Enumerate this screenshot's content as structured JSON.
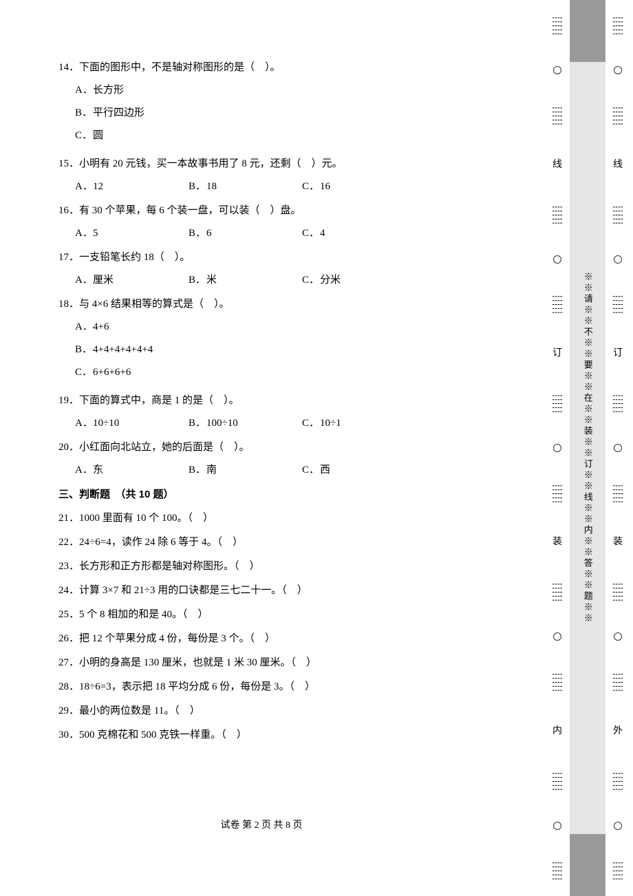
{
  "questions": [
    {
      "num": "14．",
      "stem": "下面的图形中，不是轴对称图形的是（　）。",
      "layout": "2then1",
      "opts": [
        {
          "l": "A．",
          "t": "长方形"
        },
        {
          "l": "B．",
          "t": "平行四边形"
        },
        {
          "l": "C．",
          "t": "圆"
        }
      ]
    },
    {
      "num": "15．",
      "stem": "小明有 20 元钱，买一本故事书用了 8 元，还剩（　）元。",
      "layout": "3col",
      "opts": [
        {
          "l": "A．",
          "t": "12"
        },
        {
          "l": "B．",
          "t": "18"
        },
        {
          "l": "C．",
          "t": "16"
        }
      ]
    },
    {
      "num": "16．",
      "stem": "有 30 个苹果，每 6 个装一盘，可以装（　）盘。",
      "layout": "3col",
      "opts": [
        {
          "l": "A．",
          "t": "5"
        },
        {
          "l": "B．",
          "t": "6"
        },
        {
          "l": "C．",
          "t": "4"
        }
      ]
    },
    {
      "num": "17．",
      "stem": "一支铅笔长约 18（　）。",
      "layout": "3col",
      "opts": [
        {
          "l": "A．",
          "t": "厘米"
        },
        {
          "l": "B．",
          "t": "米"
        },
        {
          "l": "C．",
          "t": "分米"
        }
      ]
    },
    {
      "num": "18．",
      "stem": "与 4×6 结果相等的算式是（　）。",
      "layout": "2then1",
      "opts": [
        {
          "l": "A．",
          "t": "4+6"
        },
        {
          "l": "B．",
          "t": "4+4+4+4+4+4"
        },
        {
          "l": "C．",
          "t": "6+6+6+6"
        }
      ]
    },
    {
      "num": "19．",
      "stem": "下面的算式中，商是 1 的是（　）。",
      "layout": "3col",
      "opts": [
        {
          "l": "A．",
          "t": "10÷10"
        },
        {
          "l": "B．",
          "t": "100÷10"
        },
        {
          "l": "C．",
          "t": "10÷1"
        }
      ]
    },
    {
      "num": "20．",
      "stem": "小红面向北站立，她的后面是（　）。",
      "layout": "3col",
      "opts": [
        {
          "l": "A．",
          "t": "东"
        },
        {
          "l": "B．",
          "t": "南"
        },
        {
          "l": "C．",
          "t": "西"
        }
      ]
    }
  ],
  "section3_title": "三、判断题　（共 10 题）",
  "judges": [
    "21．1000 里面有 10 个 100。（　）",
    "22．24÷6=4，读作 24 除 6 等于 4。（　）",
    "23．长方形和正方形都是轴对称图形。（　）",
    "24．计算 3×7 和 21÷3 用的口诀都是三七二十一。（　）",
    "25．5 个 8 相加的和是 40。（　）",
    "26．把 12 个苹果分成 4 份，每份是 3 个。（　）",
    "27．小明的身高是 130 厘米，也就是 1 米 30 厘米。（　）",
    "28．18÷6=3，表示把 18 平均分成 6 份，每份是 3。（　）",
    "29．最小的两位数是 11。（　）",
    "30．500 克棉花和 500 克铁一样重。（　）"
  ],
  "footer": "试卷 第 2 页 共 8 页",
  "margin": {
    "chars_inner": [
      "线",
      "订",
      "装",
      "内"
    ],
    "chars_outer": [
      "线",
      "订",
      "装",
      "外"
    ],
    "center_text": "※※请※※不※※要※※在※※装※※订※※线※※内※※答※※题※※",
    "dots": "┊┊┊┊┊"
  }
}
